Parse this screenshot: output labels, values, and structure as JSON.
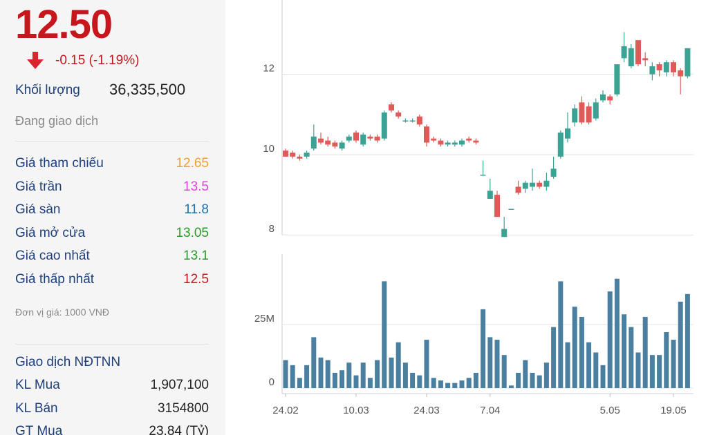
{
  "panel": {
    "price": "12.50",
    "change": "-0.15 (-1.19%)",
    "volume_label": "Khối lượng",
    "volume": "36,335,500",
    "status": "Đang giao dịch",
    "rows": [
      {
        "label": "Giá tham chiếu",
        "value": "12.65",
        "color": "#f0a030"
      },
      {
        "label": "Giá trần",
        "value": "13.5",
        "color": "#e040e0"
      },
      {
        "label": "Giá sàn",
        "value": "11.8",
        "color": "#1f6fa8"
      },
      {
        "label": "Giá mở cửa",
        "value": "13.05",
        "color": "#2a9a2a"
      },
      {
        "label": "Giá cao nhất",
        "value": "13.1",
        "color": "#2a9a2a"
      },
      {
        "label": "Giá thấp nhất",
        "value": "12.5",
        "color": "#c8161d"
      }
    ],
    "unit": "Đơn vị giá: 1000 VNĐ",
    "foreign_title": "Giao dịch NĐTNN",
    "foreign_rows": [
      {
        "label": "KL Mua",
        "value": "1,907,100"
      },
      {
        "label": "KL Bán",
        "value": "3154800"
      },
      {
        "label": "GT Mua",
        "value": "23.84 (Tỷ)"
      }
    ]
  },
  "chart_data": [
    {
      "type": "candlestick",
      "up_color": "#3aa394",
      "down_color": "#e05a5a",
      "categories": [
        "24.02",
        null,
        null,
        null,
        null,
        null,
        null,
        null,
        null,
        null,
        "10.03",
        null,
        null,
        null,
        null,
        null,
        null,
        null,
        null,
        null,
        "24.03",
        null,
        null,
        null,
        null,
        null,
        null,
        null,
        null,
        "7.04",
        null,
        null,
        null,
        null,
        null,
        null,
        null,
        null,
        null,
        null,
        null,
        null,
        null,
        null,
        null,
        null,
        "5.05",
        null,
        null,
        null,
        null,
        null,
        null,
        null,
        null,
        "19.05",
        null,
        null
      ],
      "open": [
        10.1,
        10.05,
        9.95,
        9.95,
        10.15,
        10.4,
        10.35,
        10.3,
        10.15,
        10.35,
        10.55,
        10.25,
        10.45,
        10.45,
        10.4,
        11.25,
        11.05,
        10.85,
        10.85,
        10.95,
        10.7,
        10.4,
        10.35,
        10.25,
        10.25,
        10.25,
        10.4,
        10.35,
        9.5,
        8.9,
        9.0,
        7.95,
        8.65,
        9.2,
        9.15,
        9.2,
        9.3,
        9.2,
        9.45,
        9.95,
        10.4,
        10.8,
        11.3,
        11.2,
        10.9,
        11.35,
        11.45,
        11.5,
        12.4,
        12.2,
        12.85,
        12.4,
        12.0,
        12.25,
        12.05,
        12.3,
        12.1,
        11.95
      ],
      "high": [
        10.15,
        10.1,
        10.0,
        10.1,
        10.75,
        10.55,
        10.45,
        10.35,
        10.35,
        10.5,
        10.6,
        10.55,
        10.5,
        10.5,
        11.1,
        11.3,
        11.1,
        10.9,
        10.9,
        11.0,
        10.75,
        10.45,
        10.4,
        10.35,
        10.35,
        10.4,
        10.45,
        10.4,
        9.85,
        9.4,
        9.1,
        8.45,
        8.65,
        9.35,
        9.35,
        9.65,
        9.35,
        9.55,
        9.95,
        10.6,
        11.05,
        11.25,
        11.45,
        11.3,
        11.4,
        11.6,
        11.5,
        12.25,
        13.05,
        12.75,
        12.85,
        12.55,
        12.3,
        12.3,
        12.35,
        12.35,
        12.15,
        12.65
      ],
      "low": [
        9.95,
        9.9,
        9.85,
        9.9,
        10.1,
        10.25,
        10.2,
        10.15,
        10.1,
        10.3,
        10.3,
        10.2,
        10.35,
        10.3,
        10.35,
        11.05,
        10.9,
        10.8,
        10.8,
        10.7,
        10.2,
        10.3,
        10.2,
        10.2,
        10.2,
        10.2,
        10.3,
        10.25,
        9.5,
        8.9,
        8.45,
        7.95,
        8.65,
        9.0,
        9.05,
        9.1,
        9.15,
        9.1,
        9.4,
        9.9,
        10.3,
        10.7,
        10.75,
        10.75,
        10.85,
        11.3,
        11.25,
        11.45,
        12.3,
        12.15,
        12.2,
        12.2,
        11.85,
        11.95,
        11.95,
        11.95,
        11.5,
        11.9
      ],
      "close": [
        9.95,
        9.95,
        9.9,
        10.05,
        10.45,
        10.3,
        10.25,
        10.2,
        10.3,
        10.45,
        10.35,
        10.5,
        10.4,
        10.35,
        11.05,
        11.1,
        10.95,
        10.85,
        10.85,
        10.75,
        10.3,
        10.35,
        10.25,
        10.3,
        10.3,
        10.35,
        10.35,
        10.3,
        9.5,
        9.1,
        8.45,
        8.15,
        8.65,
        9.05,
        9.3,
        9.3,
        9.2,
        9.35,
        9.65,
        10.55,
        10.65,
        11.15,
        10.8,
        10.8,
        11.3,
        11.5,
        11.35,
        12.25,
        12.7,
        12.65,
        12.25,
        12.35,
        12.2,
        12.1,
        12.3,
        12.05,
        11.95,
        12.65
      ],
      "ylim": [
        7.85,
        13.85
      ],
      "yticks": [
        8,
        10,
        12
      ],
      "grid": true
    },
    {
      "type": "bar",
      "color": "#4a7fa0",
      "values": [
        11,
        9,
        4,
        9,
        20,
        12,
        11,
        6,
        7,
        10,
        5,
        10,
        4,
        11,
        42,
        12,
        18,
        10,
        6,
        5,
        19,
        4,
        3,
        2,
        2,
        3,
        4,
        6,
        31,
        20,
        19,
        13,
        1,
        6,
        11,
        6,
        5,
        10,
        24,
        42,
        18,
        32,
        28,
        18,
        14,
        9,
        38,
        43,
        29,
        24,
        14,
        28,
        13,
        13,
        22,
        19,
        34,
        37
      ],
      "ylim": [
        0,
        52.7
      ],
      "yticks": [
        0,
        {
          "value": 25,
          "label": "25M"
        }
      ],
      "grid": true
    }
  ]
}
